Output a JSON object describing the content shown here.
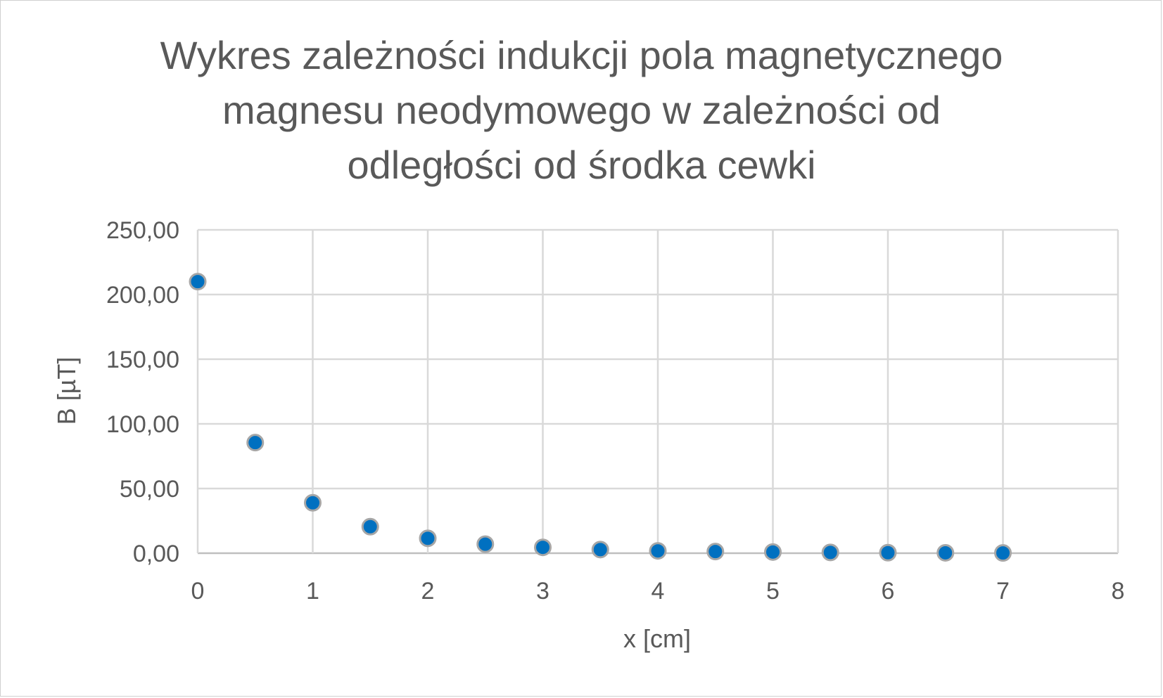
{
  "chart_data": {
    "type": "scatter",
    "title_lines": [
      "Wykres zależności indukcji pola magnetycznego",
      "magnesu neodymowego w zależności od",
      "odległości od środka cewki"
    ],
    "xlabel": "x [cm]",
    "ylabel": "B [µT]",
    "xlim": [
      0,
      8
    ],
    "ylim": [
      0,
      250
    ],
    "x_ticks": [
      "0",
      "1",
      "2",
      "3",
      "4",
      "5",
      "6",
      "7",
      "8"
    ],
    "x_tick_values": [
      0,
      1,
      2,
      3,
      4,
      5,
      6,
      7,
      8
    ],
    "y_ticks": [
      "0,00",
      "50,00",
      "100,00",
      "150,00",
      "200,00",
      "250,00"
    ],
    "y_tick_values": [
      0,
      50,
      100,
      150,
      200,
      250
    ],
    "grid": true,
    "legend": "none",
    "marker_color": "#0070c0",
    "marker_edge_color": "#a6a6a6",
    "series": [
      {
        "x": [
          0,
          0.5,
          1,
          1.5,
          2,
          2.5,
          3,
          3.5,
          4,
          4.5,
          5,
          5.5,
          6,
          6.5,
          7
        ],
        "y": [
          210,
          85.5,
          39,
          20.5,
          11.5,
          7,
          4.5,
          2.8,
          1.8,
          1.3,
          0.9,
          0.6,
          0.4,
          0.3,
          0.2
        ]
      }
    ]
  }
}
